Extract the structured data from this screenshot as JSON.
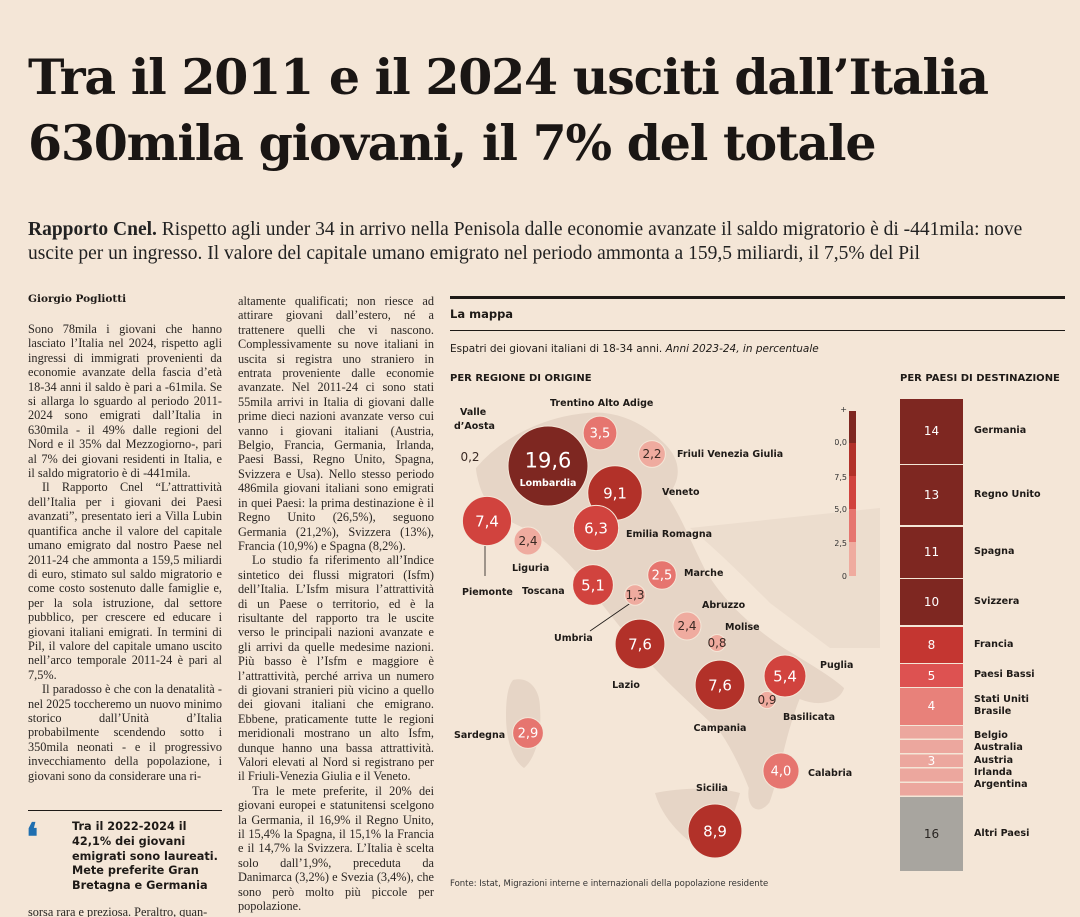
{
  "headline": {
    "line1": "Tra il 2011 e il 2024 usciti dall’Italia",
    "line2": "630mila giovani, il 7% del totale"
  },
  "subhead": {
    "lead": "Rapporto Cnel.",
    "text": " Rispetto agli under 34 in arrivo nella Penisola dalle economie avanzate il saldo migratorio è di -441mila: nove uscite per un ingresso. Il valore del capitale umano emigrato nel periodo ammonta a 159,5 miliardi, il 7,5% del Pil"
  },
  "article": {
    "author": "Giorgio Pogliotti",
    "col1": [
      "Sono 78mila i giovani che hanno lasciato l’Italia nel 2024, rispetto agli ingressi di immigrati provenienti da economie avanzate della fascia d’età 18-34 anni il saldo è pari a -61mila. Se si allarga lo sguardo al periodo 2011-2024 sono emigrati dall’Italia in 630mila - il 49% dalle regioni del Nord e il 35% dal Mezzogiorno-, pari al 7% dei giovani residenti in Italia, e il saldo migratorio è di -441mila.",
      "Il Rapporto Cnel “L’attrattività dell’Italia per i giovani dei Paesi avanzati”, presentato ieri a Villa Lubin quantifica anche il valore del capitale umano emigrato dal nostro Paese nel 2011-24 che ammonta a 159,5 miliardi di euro, stimato sul saldo migratorio e come costo sostenuto dalle famiglie e, per la sola istruzione, dal settore pubblico, per crescere ed educare i giovani italiani emigrati. In termini di Pil, il valore del capitale umano uscito nell’arco temporale 2011-24 è pari al 7,5%.",
      "Il paradosso è che con la denatalità - nel 2025 toccheremo un nuovo minimo storico dall’Unità d’Italia probabilmente scendendo sotto i 350mila neonati - e il progressivo invecchiamento della popolazione, i giovani sono da considerare una ri-"
    ],
    "col1_tail": "sorsa rara e preziosa. Peraltro, quan-",
    "col2": [
      "altamente qualificati; non riesce ad attirare giovani dall’estero, né a trattenere quelli che vi nascono. Complessivamente su nove italiani in uscita si registra uno straniero in entrata proveniente dalle economie avanzate. Nel 2011-24 ci sono stati 55mila arrivi in Italia di giovani dalle prime dieci nazioni avanzate verso cui vanno i giovani italiani (Austria, Belgio, Francia, Germania, Irlanda, Paesi Bassi, Regno Unito, Spagna, Svizzera e Usa). Nello stesso periodo 486mila giovani italiani sono emigrati in quei Paesi: la prima destinazione è il Regno Unito (26,5%), seguono Germania (21,2%), Svizzera (13%), Francia (10,9%) e Spagna (8,2%).",
      "Lo studio fa riferimento all’Indice sintetico dei flussi migratori (Isfm) dell’Italia. L’Isfm misura l’attrattività di un Paese o territorio, ed è la risultante del rapporto tra le uscite verso le principali nazioni avanzate e gli arrivi da quelle medesime nazioni. Più basso è l’Isfm e maggiore è l’attrattività, perché arriva un numero di giovani stranieri più vicino a quello dei giovani italiani che emigrano. Ebbene, praticamente tutte le regioni meridionali mostrano un alto Isfm, dunque hanno una bassa attrattività. Valori elevati al Nord si registrano per il Friuli-Venezia Giulia e il Veneto.",
      "Tra le mete preferite, il 20% dei giovani europei e statunitensi scelgono la Germania, il 16,9% il Regno Unito, il 15,4% la Spagna, il 15,1% la Francia e il 14,7% la Svizzera. L’Italia è scelta solo dall’1,9%, preceduta da Danimarca (3,2%) e Svezia (3,4%), che sono però molto più piccole per popolazione."
    ]
  },
  "pullquote": "Tra il 2022-2024 il 42,1% dei giovani emigrati sono laureati. Mete preferite Gran Bretagna e Germania",
  "figure": {
    "title": "La mappa",
    "subtitle": "Espatri dei giovani italiani di 18-34 anni.",
    "subtitle_italic": "Anni 2023-24, in percentuale",
    "left_label": "PER REGIONE DI ORIGINE",
    "right_label": "PER PAESI DI DESTINAZIONE",
    "source": "Fonte: Istat, Migrazioni interne e internazionali della popolazione residente",
    "legend": {
      "top": "+",
      "ticks": [
        "10,0",
        "7,5",
        "5,0",
        "2,5",
        "0"
      ]
    }
  },
  "chart_data": [
    {
      "type": "bubble-map",
      "title": "PER REGIONE DI ORIGINE",
      "units": "percent",
      "regions": [
        {
          "name": "Valle d’Aosta",
          "value": "0,2"
        },
        {
          "name": "Trentino Alto Adige",
          "value": "3,5"
        },
        {
          "name": "Friuli Venezia Giulia",
          "value": "2,2"
        },
        {
          "name": "Lombardia",
          "value": "19,6"
        },
        {
          "name": "Veneto",
          "value": "9,1"
        },
        {
          "name": "Piemonte",
          "value": "7,4"
        },
        {
          "name": "Emilia Romagna",
          "value": "6,3"
        },
        {
          "name": "Liguria",
          "value": "2,4"
        },
        {
          "name": "Toscana",
          "value": "5,1"
        },
        {
          "name": "Marche",
          "value": "2,5"
        },
        {
          "name": "Umbria",
          "value": "1,3"
        },
        {
          "name": "Abruzzo",
          "value": "2,4"
        },
        {
          "name": "Molise",
          "value": "0,8"
        },
        {
          "name": "Lazio",
          "value": "7,6"
        },
        {
          "name": "Puglia",
          "value": "5,4"
        },
        {
          "name": "Campania",
          "value": "7,6"
        },
        {
          "name": "Basilicata",
          "value": "0,9"
        },
        {
          "name": "Sardegna",
          "value": "2,9"
        },
        {
          "name": "Calabria",
          "value": "4,0"
        },
        {
          "name": "Sicilia",
          "value": "8,9"
        }
      ]
    },
    {
      "type": "bar",
      "title": "PER PAESI DI DESTINAZIONE",
      "units": "percent",
      "rows": [
        {
          "value": "14",
          "names": [
            "Germania"
          ],
          "share": 14,
          "color": "#7e2721"
        },
        {
          "value": "13",
          "names": [
            "Regno Unito"
          ],
          "share": 13,
          "color": "#7e2721"
        },
        {
          "value": "11",
          "names": [
            "Spagna"
          ],
          "share": 11,
          "color": "#7e2721"
        },
        {
          "value": "10",
          "names": [
            "Svizzera"
          ],
          "share": 10,
          "color": "#7e2721"
        },
        {
          "value": "8",
          "names": [
            "Francia"
          ],
          "share": 8,
          "color": "#c43631"
        },
        {
          "value": "5",
          "names": [
            "Paesi Bassi"
          ],
          "share": 5,
          "color": "#dd5251"
        },
        {
          "value": "4",
          "names": [
            "Stati Uniti",
            "Brasile"
          ],
          "share": 8,
          "color": "#e8817a"
        },
        {
          "value": "3",
          "names": [
            "Belgio",
            "Australia",
            "Austria",
            "Irlanda",
            "Argentina"
          ],
          "share": 15,
          "color": "#eca79e"
        },
        {
          "value": "16",
          "names": [
            "Altri Paesi"
          ],
          "share": 16,
          "color": "#a8a59f"
        }
      ]
    }
  ]
}
